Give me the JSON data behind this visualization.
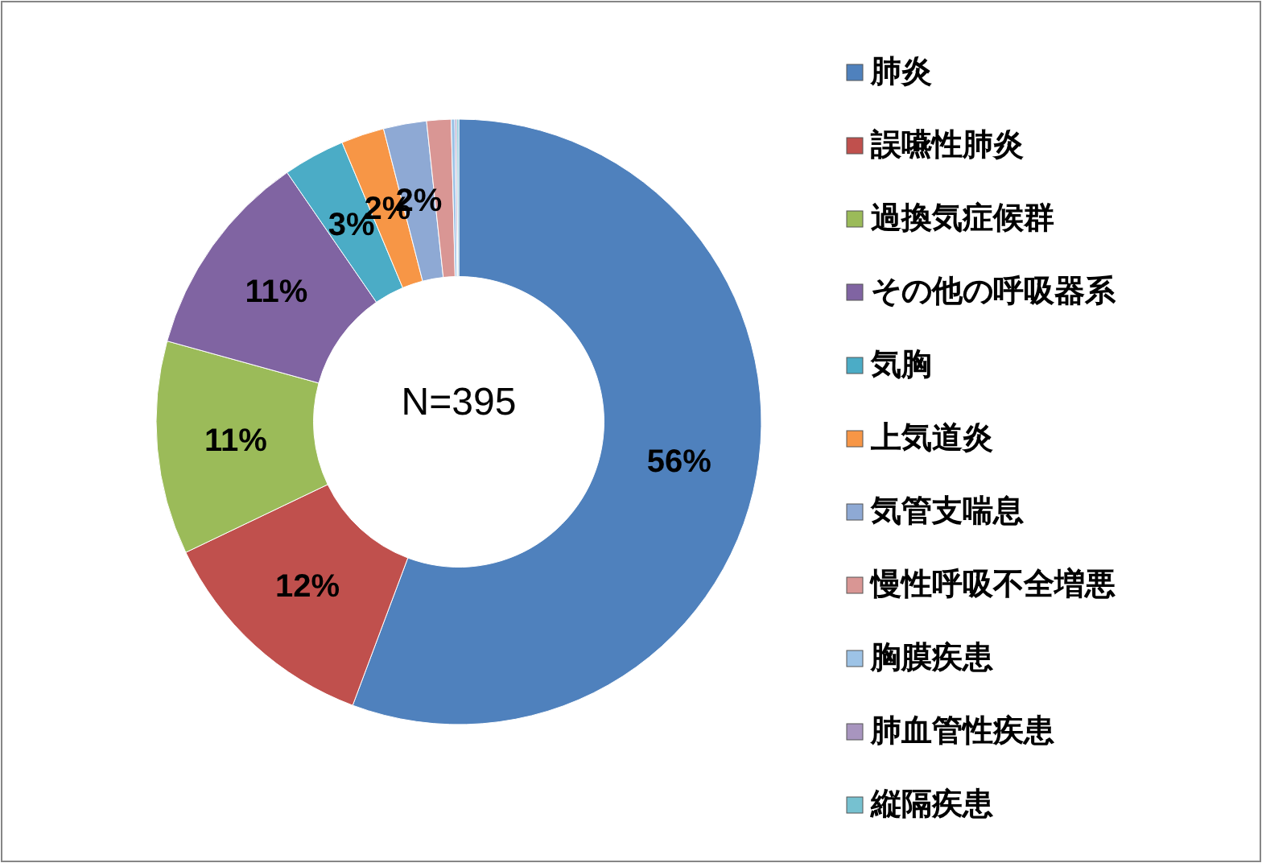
{
  "chart_data": {
    "type": "donut",
    "categories": [
      "肺炎",
      "誤嚥性肺炎",
      "過換気症候群",
      "その他の呼吸器系",
      "気胸",
      "上気道炎",
      "気管支喘息",
      "慢性呼吸不全増悪",
      "胸膜疾患",
      "肺血管性疾患",
      "縦隔疾患"
    ],
    "values": [
      55.7,
      12.2,
      11.4,
      11.1,
      3.3,
      2.3,
      2.3,
      1.3,
      0.2,
      0.1,
      0.1
    ],
    "colors": [
      "#4f81bd",
      "#c0504d",
      "#9bbb59",
      "#8064a2",
      "#4bacc6",
      "#f79646",
      "#8ea9d4",
      "#d99694",
      "#9dc3e6",
      "#a895bf",
      "#76c1d0"
    ],
    "value_labels": [
      "56%",
      "12%",
      "11%",
      "11%",
      "3%",
      "2%",
      "2%",
      null,
      null,
      null,
      null
    ],
    "annotations": [
      "N=395"
    ],
    "legend": "right"
  }
}
